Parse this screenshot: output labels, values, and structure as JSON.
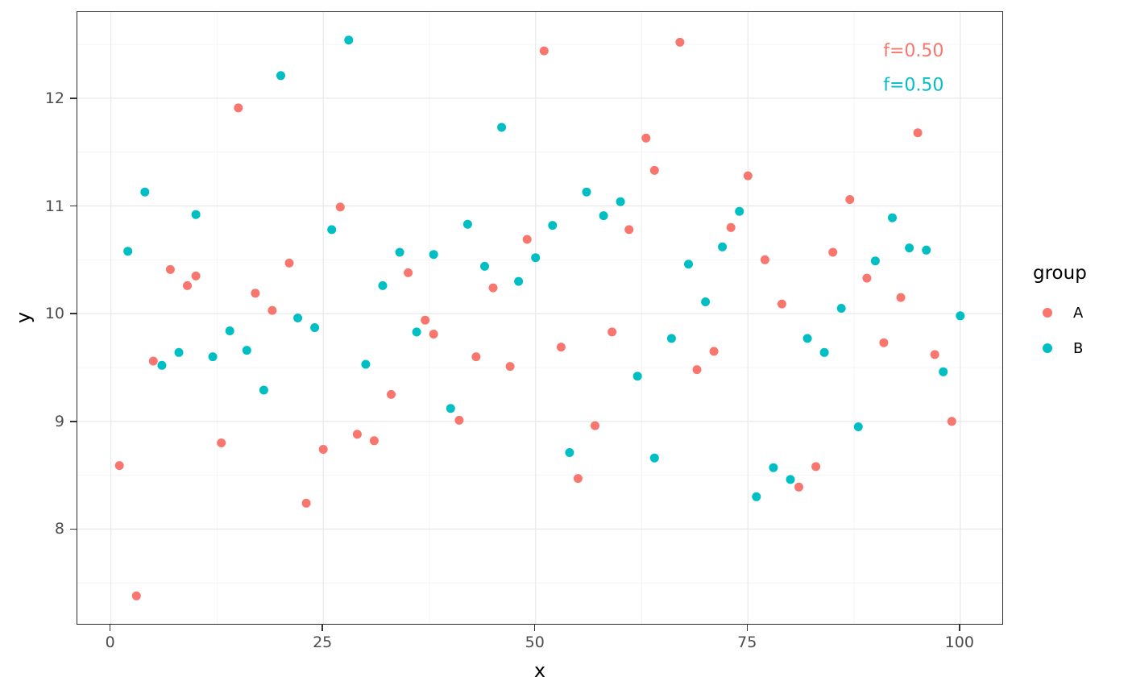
{
  "colors": {
    "background": "#ffffff",
    "panel_border": "#2b2b2b",
    "grid_major": "#e8e8e8",
    "grid_minor": "#f4f4f4",
    "tick": "#333333",
    "tick_label": "#4d4d4d",
    "group_a": "#F8766D",
    "group_b": "#00BFC4"
  },
  "chart_data": {
    "type": "scatter",
    "title": "",
    "xlabel": "x",
    "ylabel": "y",
    "xlim": [
      -3.95,
      104.95
    ],
    "ylim": [
      7.12,
      12.8
    ],
    "x_ticks": [
      0,
      25,
      50,
      75,
      100
    ],
    "y_ticks": [
      8,
      9,
      10,
      11,
      12
    ],
    "x_minor_ticks": [
      12.5,
      37.5,
      62.5,
      87.5
    ],
    "y_minor_ticks": [
      7.5,
      8.5,
      9.5,
      10.5,
      11.5,
      12.5
    ],
    "grid": "major+minor",
    "point_radius": 5.5,
    "legend": {
      "title": "group",
      "position": "right",
      "items": [
        {
          "label": "A",
          "color": "#F8766D"
        },
        {
          "label": "B",
          "color": "#00BFC4"
        }
      ]
    },
    "annotations": [
      {
        "text": "f=0.50",
        "color": "#F8766D",
        "x": 94.5,
        "y": 12.45
      },
      {
        "text": "f=0.50",
        "color": "#00BFC4",
        "x": 94.5,
        "y": 12.13
      }
    ],
    "series": [
      {
        "name": "A",
        "color": "#F8766D",
        "points": [
          [
            1,
            8.59
          ],
          [
            3,
            7.38
          ],
          [
            5,
            9.56
          ],
          [
            7,
            10.41
          ],
          [
            9,
            10.26
          ],
          [
            10,
            10.35
          ],
          [
            13,
            8.8
          ],
          [
            15,
            11.91
          ],
          [
            17,
            10.19
          ],
          [
            19,
            10.03
          ],
          [
            21,
            10.47
          ],
          [
            23,
            8.24
          ],
          [
            25,
            8.74
          ],
          [
            27,
            10.99
          ],
          [
            29,
            8.88
          ],
          [
            31,
            8.82
          ],
          [
            33,
            9.25
          ],
          [
            35,
            10.38
          ],
          [
            37,
            9.94
          ],
          [
            38,
            9.81
          ],
          [
            41,
            9.01
          ],
          [
            43,
            9.6
          ],
          [
            45,
            10.24
          ],
          [
            47,
            9.51
          ],
          [
            49,
            10.69
          ],
          [
            51,
            12.44
          ],
          [
            53,
            9.69
          ],
          [
            55,
            8.47
          ],
          [
            57,
            8.96
          ],
          [
            59,
            9.83
          ],
          [
            61,
            10.78
          ],
          [
            63,
            11.63
          ],
          [
            64,
            11.33
          ],
          [
            67,
            12.52
          ],
          [
            69,
            9.48
          ],
          [
            71,
            9.65
          ],
          [
            73,
            10.8
          ],
          [
            75,
            11.28
          ],
          [
            77,
            10.5
          ],
          [
            79,
            10.09
          ],
          [
            81,
            8.39
          ],
          [
            83,
            8.58
          ],
          [
            85,
            10.57
          ],
          [
            87,
            11.06
          ],
          [
            89,
            10.33
          ],
          [
            91,
            9.73
          ],
          [
            93,
            10.15
          ],
          [
            95,
            11.68
          ],
          [
            97,
            9.62
          ],
          [
            99,
            9.0
          ]
        ]
      },
      {
        "name": "B",
        "color": "#00BFC4",
        "points": [
          [
            2,
            10.58
          ],
          [
            4,
            11.13
          ],
          [
            6,
            9.52
          ],
          [
            8,
            9.64
          ],
          [
            10,
            10.92
          ],
          [
            12,
            9.6
          ],
          [
            14,
            9.84
          ],
          [
            16,
            9.66
          ],
          [
            18,
            9.29
          ],
          [
            20,
            12.21
          ],
          [
            22,
            9.96
          ],
          [
            24,
            9.87
          ],
          [
            26,
            10.78
          ],
          [
            28,
            12.54
          ],
          [
            30,
            9.53
          ],
          [
            32,
            10.26
          ],
          [
            34,
            10.57
          ],
          [
            36,
            9.83
          ],
          [
            38,
            10.55
          ],
          [
            40,
            9.12
          ],
          [
            42,
            10.83
          ],
          [
            44,
            10.44
          ],
          [
            46,
            11.73
          ],
          [
            48,
            10.3
          ],
          [
            50,
            10.52
          ],
          [
            52,
            10.82
          ],
          [
            54,
            8.71
          ],
          [
            56,
            11.13
          ],
          [
            58,
            10.91
          ],
          [
            60,
            11.04
          ],
          [
            62,
            9.42
          ],
          [
            64,
            8.66
          ],
          [
            66,
            9.77
          ],
          [
            68,
            10.46
          ],
          [
            70,
            10.11
          ],
          [
            72,
            10.62
          ],
          [
            74,
            10.95
          ],
          [
            76,
            8.3
          ],
          [
            78,
            8.57
          ],
          [
            80,
            8.46
          ],
          [
            82,
            9.77
          ],
          [
            84,
            9.64
          ],
          [
            86,
            10.05
          ],
          [
            88,
            8.95
          ],
          [
            90,
            10.49
          ],
          [
            92,
            10.89
          ],
          [
            94,
            10.61
          ],
          [
            96,
            10.59
          ],
          [
            98,
            9.46
          ],
          [
            100,
            9.98
          ]
        ]
      }
    ]
  }
}
